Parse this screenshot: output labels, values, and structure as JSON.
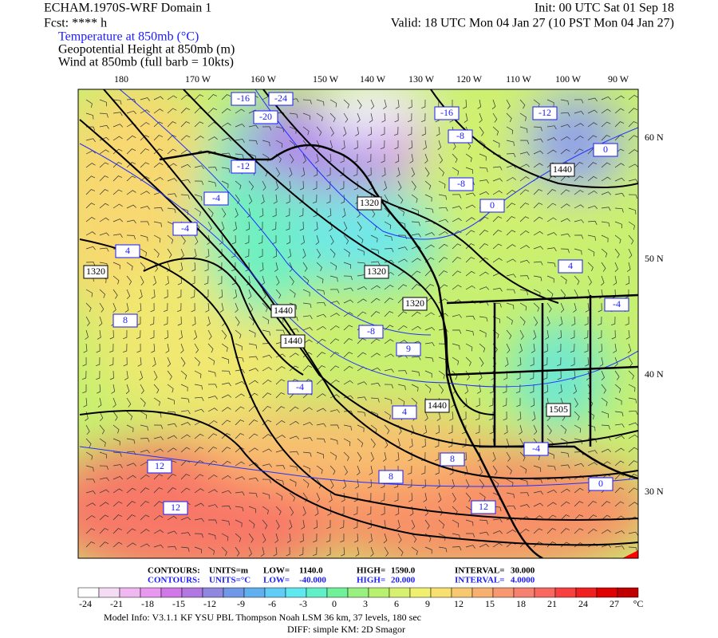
{
  "header": {
    "title": "ECHAM.1970S-WRF Domain 1",
    "forecast": "Fcst: **** h",
    "init": "Init: 00 UTC Sat 01 Sep 18",
    "valid": "Valid: 18 UTC Mon 04 Jan 27 (10 PST Mon 04 Jan 27)",
    "fields": [
      "Temperature at 850mb (°C)",
      "Geopotential Height at 850mb (m)",
      "Wind at 850mb (full barb = 10kts)"
    ]
  },
  "map": {
    "longitude_labels": [
      "180",
      "170 W",
      "160 W",
      "150 W",
      "140 W",
      "130 W",
      "120 W",
      "110 W",
      "100 W",
      "90 W"
    ],
    "latitude_labels": [
      "60 N",
      "50 N",
      "40 N",
      "30 N"
    ],
    "height_labels": [
      "1320",
      "1440",
      "1440",
      "1320",
      "1320",
      "1320",
      "1440",
      "1440",
      "1505"
    ],
    "temperature_labels": [
      "-24",
      "-20",
      "-16",
      "-12",
      "-8",
      "-4",
      "-4",
      "0",
      "4",
      "8",
      "-8",
      "-4",
      "9",
      "4",
      "8",
      "8",
      "12",
      "12",
      "12",
      "-12",
      "-16",
      "-8",
      "0",
      "4",
      "-4",
      "0",
      "-4"
    ]
  },
  "contour_info": [
    [
      "CONTOURS:",
      "UNITS=m",
      "LOW=",
      "1140.0",
      "HIGH=",
      "1590.0",
      "INTERVAL=",
      "30.000"
    ],
    [
      "CONTOURS:",
      "UNITS=°C",
      "LOW=",
      "-40.000",
      "HIGH=",
      "20.000",
      "INTERVAL=",
      "4.0000"
    ]
  ],
  "colorbar": {
    "labels": [
      "-24",
      "-21",
      "-18",
      "-15",
      "-12",
      "-9",
      "-6",
      "-3",
      "0",
      "3",
      "6",
      "9",
      "12",
      "15",
      "18",
      "21",
      "24",
      "27"
    ],
    "unit": "°C",
    "colors": [
      "#ffffff",
      "#f5dcf5",
      "#f0b8f0",
      "#e898f0",
      "#d078e8",
      "#b078e0",
      "#9088e0",
      "#7098e8",
      "#60b0f0",
      "#60ccf8",
      "#60e8f0",
      "#60f0c8",
      "#70f098",
      "#98f080",
      "#b8f070",
      "#d8f070",
      "#f0f070",
      "#f8e070",
      "#f8c870",
      "#f8b070",
      "#f89870",
      "#f88070",
      "#f86860",
      "#f84040",
      "#f02020",
      "#e00000",
      "#c00000"
    ]
  },
  "footer": {
    "model_info": "Model Info: V3.1.1    KF     YSU PBL    Thompson     Noah LSM   36 km,    37 levels,   180 sec",
    "diff": "DIFF: simple KM: 2D Smagor"
  }
}
